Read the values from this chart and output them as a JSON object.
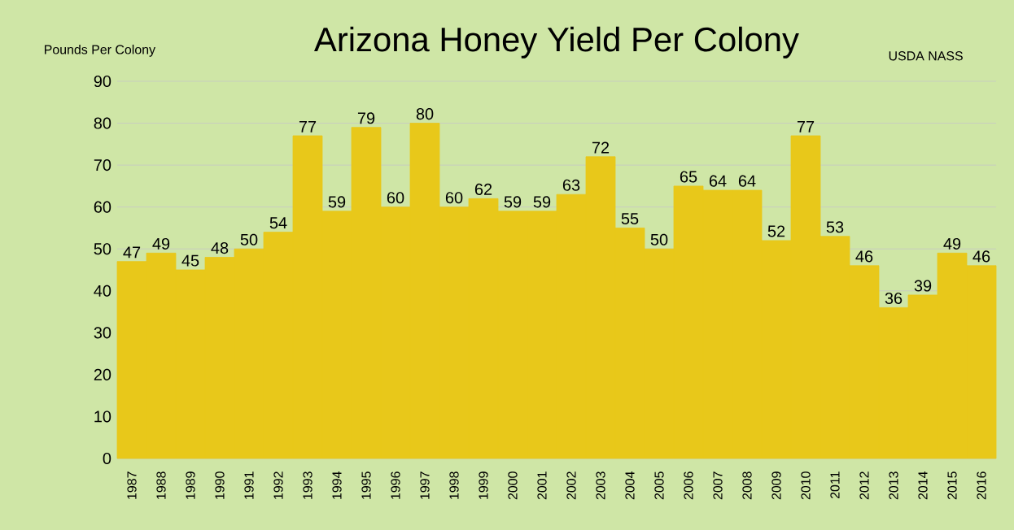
{
  "chart_data": {
    "type": "bar",
    "title": "Arizona Honey Yield Per Colony",
    "ylabel": "Pounds Per Colony",
    "annotations": [
      "USDA NASS"
    ],
    "categories": [
      "1987",
      "1988",
      "1989",
      "1990",
      "1991",
      "1992",
      "1993",
      "1994",
      "1995",
      "1996",
      "1997",
      "1998",
      "1999",
      "2000",
      "2001",
      "2002",
      "2003",
      "2004",
      "2005",
      "2006",
      "2007",
      "2008",
      "2009",
      "2010",
      "2011",
      "2012",
      "2013",
      "2014",
      "2015",
      "2016"
    ],
    "values": [
      47,
      49,
      45,
      48,
      50,
      54,
      77,
      59,
      79,
      60,
      80,
      60,
      62,
      59,
      59,
      63,
      72,
      55,
      50,
      65,
      64,
      64,
      52,
      77,
      53,
      46,
      36,
      39,
      49,
      46
    ],
    "value_labels": [
      "47",
      "49",
      "45",
      "48",
      "50",
      "54",
      "77",
      "59",
      "79",
      "60",
      "80",
      "60",
      "62",
      "59",
      "59",
      "63",
      "72",
      "55",
      "50",
      "65",
      "64",
      "64",
      "52",
      "77",
      "53",
      "46",
      "36",
      "39",
      "49",
      "46"
    ],
    "color": "#e8c81a",
    "ylim": [
      0,
      90
    ],
    "yticks": [
      0,
      10,
      20,
      30,
      40,
      50,
      60,
      70,
      80,
      90
    ],
    "grid": "y"
  }
}
